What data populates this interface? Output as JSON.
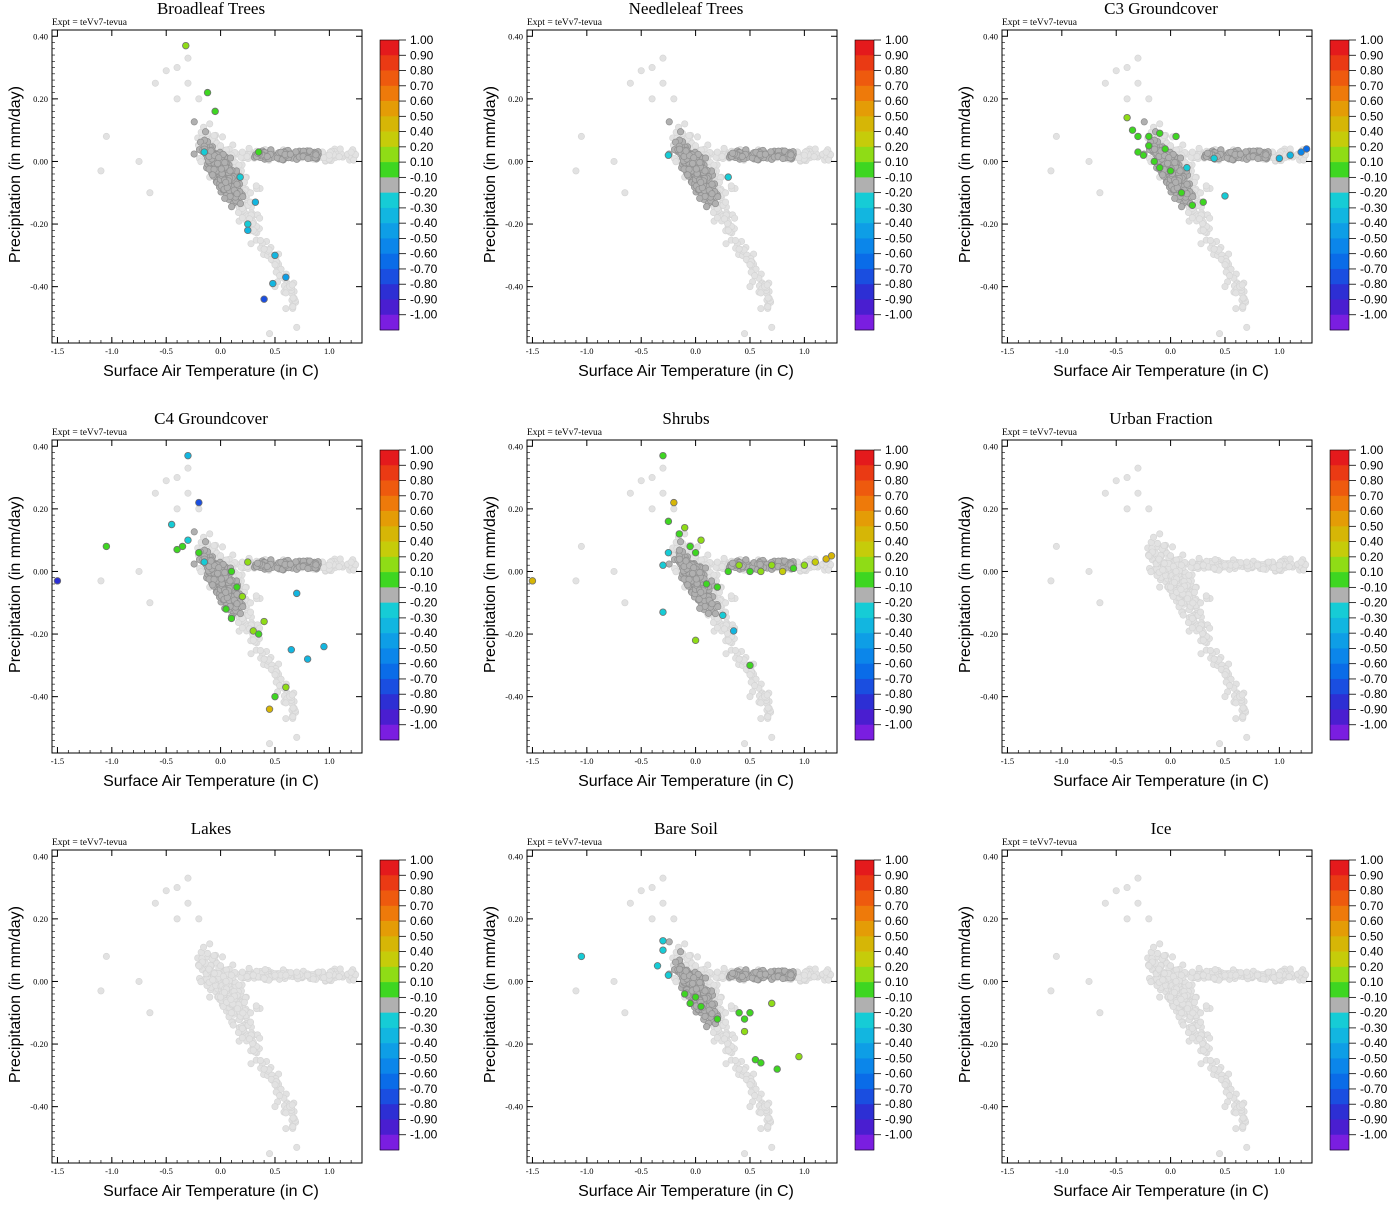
{
  "chart_data": {
    "type": "scatter",
    "experiment_label": "Expt = teVv7-tevua",
    "xlabel": "Surface Air Temperature (in C)",
    "ylabel": "Precipitation (in mm/day)",
    "xlim": [
      -1.55,
      1.3
    ],
    "ylim": [
      -0.58,
      0.42
    ],
    "x_ticks": [
      -1.5,
      -1.0,
      -0.5,
      0.0,
      0.5,
      1.0
    ],
    "x_tick_labels": [
      "-1.5",
      "-1.0",
      "-0.5",
      "0.0",
      "0.5",
      "1.0"
    ],
    "y_ticks": [
      0.4,
      0.2,
      0.0,
      -0.2,
      -0.4
    ],
    "y_tick_labels": [
      "0.40",
      "0.20",
      "0.00",
      "-0.20",
      "-0.40"
    ],
    "colorbar": {
      "labels": [
        "1.00",
        "0.90",
        "0.80",
        "0.70",
        "0.60",
        "0.50",
        "0.40",
        "0.20",
        "0.10",
        "-0.10",
        "-0.20",
        "-0.30",
        "-0.40",
        "-0.50",
        "-0.60",
        "-0.70",
        "-0.80",
        "-0.90",
        "-1.00"
      ],
      "colors": [
        "#e41a1c",
        "#ea3a14",
        "#ee5a0e",
        "#ee7a0a",
        "#e49c06",
        "#d6b606",
        "#c6cc0a",
        "#8fdc16",
        "#3ed621",
        "#b0b0b0",
        "#16ccd6",
        "#12b6e0",
        "#0e9ee6",
        "#0b86ea",
        "#0a6ce8",
        "#1a4ee0",
        "#2d2fd4",
        "#4a1ed0",
        "#7a1ee0"
      ]
    },
    "background_points": {
      "color_light": "#e2e2e2",
      "color_dark": "#b0b0b0",
      "x": [
        -0.4,
        -0.3,
        -0.3,
        -0.2,
        -0.1,
        0.0,
        0.1,
        0.2,
        0.3,
        0.4,
        0.5,
        0.6,
        0.7,
        0.8,
        0.9,
        1.0,
        1.1,
        1.2,
        -0.6,
        -0.5,
        -0.4,
        0.0,
        0.1,
        0.2,
        0.3,
        0.4,
        0.5,
        0.5,
        0.6,
        0.6,
        0.7,
        -1.05,
        -1.1,
        -0.75,
        -0.65,
        0.45,
        0.2,
        -0.2,
        -0.1,
        0.05
      ],
      "y": [
        0.3,
        0.33,
        0.25,
        0.2,
        0.12,
        0.05,
        0.02,
        0.03,
        0.02,
        0.01,
        0.02,
        0.02,
        0.03,
        0.02,
        0.03,
        0.02,
        0.04,
        0.03,
        0.25,
        0.29,
        0.2,
        -0.05,
        -0.1,
        -0.18,
        -0.22,
        -0.28,
        -0.33,
        -0.4,
        -0.42,
        -0.47,
        -0.53,
        0.08,
        -0.03,
        0.0,
        -0.1,
        -0.55,
        -0.15,
        0.05,
        -0.05,
        0.0
      ]
    },
    "panels": [
      {
        "title": "Broadleaf Trees",
        "series": [
          {
            "x": [
              -0.32,
              -0.12,
              -0.05,
              0.35,
              0.25,
              0.32,
              0.5,
              0.6,
              0.48,
              0.4,
              0.25,
              -0.15,
              0.18
            ],
            "y": [
              0.37,
              0.22,
              0.16,
              0.03,
              -0.2,
              -0.13,
              -0.3,
              -0.37,
              -0.39,
              -0.44,
              -0.22,
              0.03,
              -0.05
            ],
            "c": [
              0.2,
              0.15,
              0.15,
              0.15,
              -0.2,
              -0.3,
              -0.3,
              -0.4,
              -0.3,
              -0.7,
              -0.3,
              -0.2,
              -0.2
            ]
          }
        ]
      },
      {
        "title": "Needleleaf Trees",
        "series": [
          {
            "x": [
              -0.25,
              0.3
            ],
            "y": [
              0.02,
              -0.05
            ],
            "c": [
              -0.2,
              -0.2
            ]
          }
        ]
      },
      {
        "title": "C3 Groundcover",
        "series": [
          {
            "x": [
              -0.4,
              -0.35,
              -0.3,
              -0.25,
              -0.2,
              -0.15,
              -0.1,
              -0.05,
              0.0,
              0.05,
              0.1,
              0.2,
              0.3,
              -0.3,
              -0.2,
              -0.1,
              0.5,
              1.0,
              1.1,
              1.2,
              1.25,
              0.4,
              0.15
            ],
            "y": [
              0.14,
              0.1,
              0.08,
              0.02,
              0.05,
              0.0,
              0.09,
              0.04,
              -0.03,
              0.08,
              -0.1,
              -0.14,
              -0.13,
              0.03,
              0.08,
              -0.02,
              -0.11,
              0.01,
              0.02,
              0.03,
              0.04,
              0.01,
              -0.02
            ],
            "c": [
              0.3,
              0.15,
              0.15,
              0.15,
              0.15,
              0.15,
              0.15,
              0.15,
              0.15,
              0.15,
              0.15,
              0.15,
              0.15,
              0.15,
              0.15,
              0.15,
              -0.2,
              -0.3,
              -0.3,
              -0.5,
              -0.6,
              -0.2,
              -0.2
            ]
          }
        ]
      },
      {
        "title": "C4 Groundcover",
        "series": [
          {
            "x": [
              -1.5,
              -1.05,
              -0.3,
              -0.45,
              -0.35,
              -0.2,
              -0.15,
              0.15,
              0.2,
              0.1,
              0.3,
              0.05,
              0.35,
              0.4,
              0.5,
              0.6,
              0.45,
              0.7,
              0.8,
              0.95,
              -0.2,
              -0.3,
              -0.4,
              0.65,
              0.25,
              0.1
            ],
            "y": [
              -0.03,
              0.08,
              0.37,
              0.15,
              0.08,
              0.06,
              0.03,
              -0.05,
              -0.08,
              -0.15,
              -0.19,
              -0.12,
              -0.2,
              -0.16,
              -0.4,
              -0.37,
              -0.44,
              -0.07,
              -0.28,
              -0.24,
              0.22,
              0.1,
              0.07,
              -0.25,
              0.03,
              0.0
            ],
            "c": [
              -0.8,
              0.15,
              -0.3,
              -0.2,
              0.15,
              0.15,
              -0.2,
              0.15,
              0.3,
              0.15,
              0.3,
              0.15,
              0.15,
              0.3,
              0.15,
              0.3,
              0.5,
              -0.3,
              -0.3,
              -0.3,
              -0.7,
              -0.2,
              0.15,
              -0.3,
              0.3,
              0.15
            ]
          }
        ]
      },
      {
        "title": "Shrubs",
        "series": [
          {
            "x": [
              -1.5,
              -0.3,
              -0.25,
              -0.2,
              -0.15,
              -0.1,
              -0.05,
              0.0,
              0.05,
              0.1,
              0.2,
              0.3,
              0.4,
              0.5,
              0.6,
              0.7,
              0.8,
              0.9,
              1.0,
              1.1,
              1.2,
              1.25,
              0.0,
              -0.25,
              -0.3,
              0.35,
              0.5,
              -0.3,
              0.25
            ],
            "y": [
              -0.03,
              0.37,
              0.16,
              0.22,
              0.12,
              0.14,
              0.08,
              0.06,
              0.1,
              -0.04,
              -0.05,
              0.0,
              0.02,
              0.0,
              0.0,
              0.02,
              0.0,
              0.01,
              0.02,
              0.03,
              0.04,
              0.05,
              -0.22,
              0.06,
              0.02,
              -0.19,
              -0.3,
              -0.13,
              -0.14
            ],
            "c": [
              0.5,
              0.15,
              0.15,
              0.5,
              0.15,
              0.3,
              0.15,
              0.15,
              0.3,
              0.15,
              0.15,
              0.15,
              0.3,
              0.15,
              0.3,
              0.3,
              0.4,
              0.15,
              0.3,
              0.4,
              0.5,
              0.5,
              0.3,
              -0.2,
              -0.2,
              -0.3,
              0.15,
              -0.2,
              -0.2
            ]
          }
        ]
      },
      {
        "title": "Urban Fraction",
        "series": [
          {
            "x": [],
            "y": [],
            "c": []
          }
        ]
      },
      {
        "title": "Lakes",
        "series": [
          {
            "x": [],
            "y": [],
            "c": []
          }
        ]
      },
      {
        "title": "Bare Soil",
        "series": [
          {
            "x": [
              -1.05,
              -0.3,
              -0.35,
              -0.25,
              -0.1,
              0.0,
              0.2,
              0.4,
              0.45,
              0.5,
              0.55,
              0.45,
              0.6,
              0.7,
              0.75,
              0.95,
              -0.05,
              0.05,
              -0.3
            ],
            "y": [
              0.08,
              0.1,
              0.05,
              0.02,
              -0.04,
              -0.05,
              -0.12,
              -0.1,
              -0.12,
              -0.1,
              -0.25,
              -0.16,
              -0.26,
              -0.07,
              -0.28,
              -0.24,
              -0.07,
              -0.08,
              0.13
            ],
            "c": [
              -0.2,
              -0.2,
              -0.2,
              -0.2,
              0.15,
              0.15,
              0.15,
              0.15,
              0.15,
              0.15,
              0.15,
              0.3,
              0.15,
              0.3,
              0.15,
              0.3,
              0.15,
              0.15,
              -0.2
            ]
          }
        ]
      },
      {
        "title": "Ice",
        "series": [
          {
            "x": [],
            "y": [],
            "c": []
          }
        ]
      }
    ]
  }
}
